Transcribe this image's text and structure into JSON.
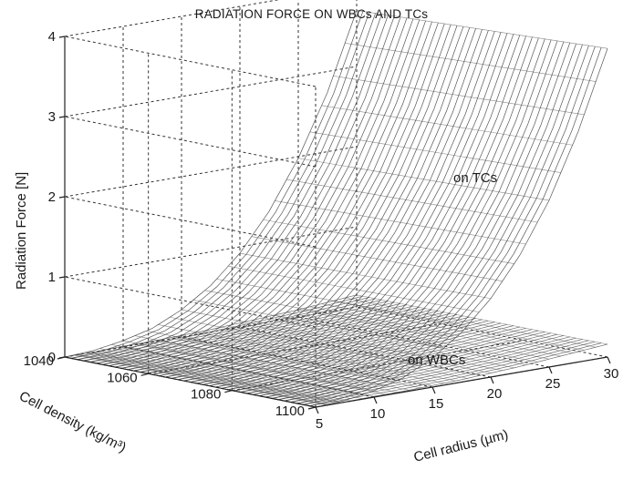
{
  "chart_data": {
    "type": "surface3d",
    "title": "RADIATION FORCE ON WBCs AND TCs",
    "zlabel": "Radiation Force  [N]",
    "xlabel": "Cell radius (µm)",
    "ylabel": "Cell density (kg/m³)",
    "x_ticks": [
      "5",
      "10",
      "15",
      "20",
      "25",
      "30"
    ],
    "y_ticks": [
      "1040",
      "1060",
      "1080",
      "1100"
    ],
    "z_ticks": [
      "0",
      "1",
      "2",
      "3",
      "4"
    ],
    "xlim": [
      5,
      30
    ],
    "ylim": [
      1040,
      1100
    ],
    "zlim": [
      0,
      4
    ],
    "grid": true,
    "series": [
      {
        "name": "on TCs",
        "label": "on TCs",
        "radius": [
          5,
          7.5,
          10,
          12.5,
          15,
          17.5,
          20,
          22.5,
          25,
          27.5,
          30
        ],
        "force_at_density_1040": [
          0.0,
          0.02,
          0.08,
          0.17,
          0.34,
          0.58,
          0.92,
          1.38,
          1.98,
          2.74,
          3.7
        ],
        "force_at_density_1100": [
          0.0,
          0.02,
          0.08,
          0.18,
          0.36,
          0.62,
          0.98,
          1.46,
          2.08,
          2.88,
          3.85
        ]
      },
      {
        "name": "on WBCs",
        "label": "on WBCs",
        "radius": [
          5,
          7.5,
          10,
          12.5,
          15,
          17.5,
          20,
          22.5,
          25,
          27.5,
          30
        ],
        "force_at_density_1040": [
          0.0,
          0.0,
          0.01,
          0.01,
          0.02,
          0.03,
          0.05,
          0.07,
          0.09,
          0.12,
          0.15
        ],
        "force_at_density_1100": [
          0.0,
          0.0,
          0.01,
          0.01,
          0.02,
          0.03,
          0.05,
          0.07,
          0.1,
          0.13,
          0.16
        ]
      }
    ]
  }
}
